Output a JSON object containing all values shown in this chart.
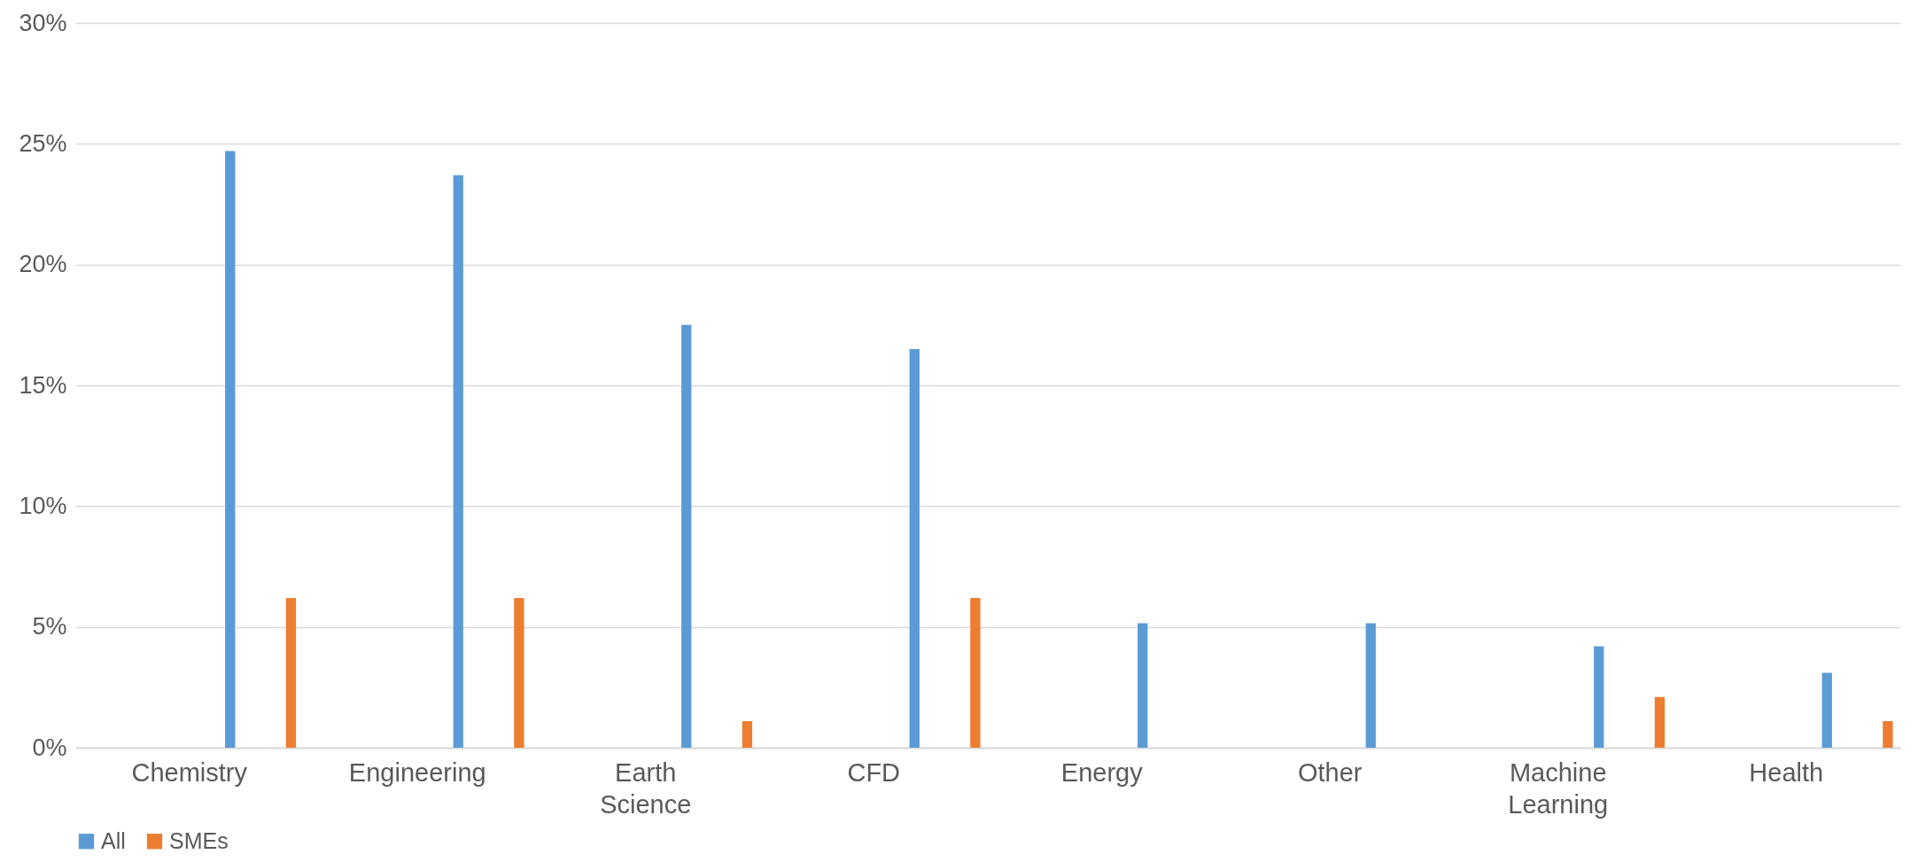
{
  "chart_data": {
    "type": "bar",
    "categories": [
      "Chemistry",
      "Engineering",
      "Earth Science",
      "CFD",
      "Energy",
      "Other",
      "Machine Learning",
      "Health"
    ],
    "series": [
      {
        "name": "All",
        "color": "#5b9bd5",
        "values": [
          24.7,
          23.7,
          17.5,
          16.5,
          5.15,
          5.15,
          4.2,
          3.1
        ]
      },
      {
        "name": "SMEs",
        "color": "#ed7d31",
        "values": [
          6.2,
          6.2,
          1.1,
          6.2,
          0,
          0,
          2.1,
          1.1
        ]
      }
    ],
    "ylim": [
      0,
      30
    ],
    "yticks": [
      {
        "value": 0,
        "label": "0%"
      },
      {
        "value": 5,
        "label": "5%"
      },
      {
        "value": 10,
        "label": "10%"
      },
      {
        "value": 15,
        "label": "15%"
      },
      {
        "value": 20,
        "label": "20%"
      },
      {
        "value": 25,
        "label": "25%"
      },
      {
        "value": 30,
        "label": "30%"
      }
    ],
    "grid": "y",
    "legend": "bottom"
  }
}
